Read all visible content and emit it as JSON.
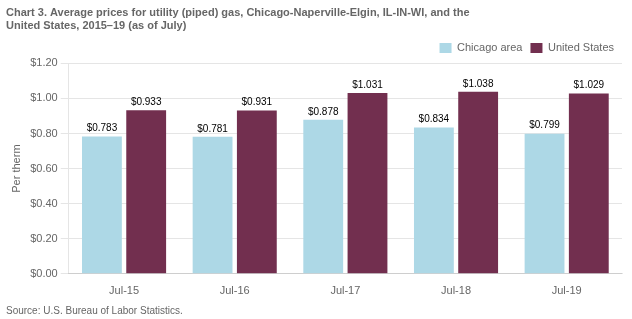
{
  "chart_data": {
    "type": "bar",
    "title": [
      "Chart 3. Average prices for utility (piped) gas, Chicago-Naperville-Elgin, IL-IN-WI, and the",
      "United States, 2015–19 (as of July)"
    ],
    "ylabel": "Per therm",
    "annotations": [
      "Source: U.S. Bureau of Labor Statistics."
    ],
    "categories": [
      "Jul-15",
      "Jul-16",
      "Jul-17",
      "Jul-18",
      "Jul-19"
    ],
    "series": [
      {
        "name": "Chicago area",
        "color": "#ADD8E6",
        "values": [
          0.783,
          0.781,
          0.878,
          0.834,
          0.799
        ],
        "value_labels": [
          "$0.783",
          "$0.781",
          "$0.878",
          "$0.834",
          "$0.799"
        ]
      },
      {
        "name": "United States",
        "color": "#722F4F",
        "values": [
          0.933,
          0.931,
          1.031,
          1.038,
          1.029
        ],
        "value_labels": [
          "$0.933",
          "$0.931",
          "$1.031",
          "$1.038",
          "$1.029"
        ]
      }
    ],
    "ylim": [
      0.0,
      1.2
    ],
    "yticks": [
      {
        "value": 0.0,
        "label": "$0.00"
      },
      {
        "value": 0.2,
        "label": "$0.20"
      },
      {
        "value": 0.4,
        "label": "$0.40"
      },
      {
        "value": 0.6,
        "label": "$0.60"
      },
      {
        "value": 0.8,
        "label": "$0.80"
      },
      {
        "value": 1.0,
        "label": "$1.00"
      },
      {
        "value": 1.2,
        "label": "$1.20"
      }
    ],
    "grid": true,
    "legend": "upper right",
    "data_labels": true
  }
}
